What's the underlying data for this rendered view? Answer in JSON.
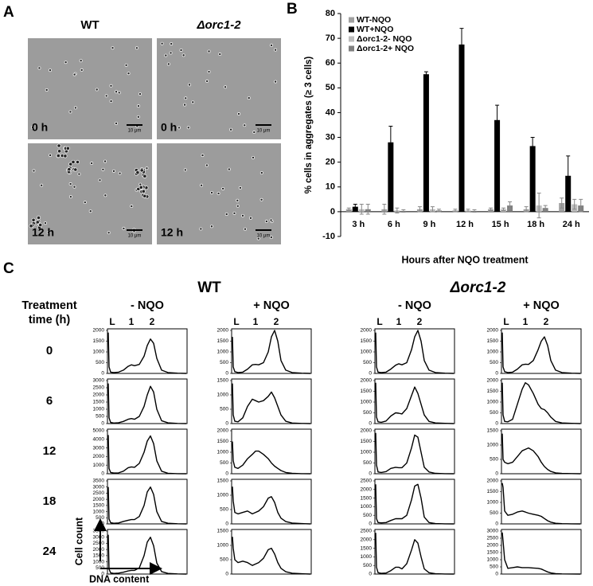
{
  "panel_labels": [
    "A",
    "B",
    "C"
  ],
  "panel_a": {
    "columns": [
      "WT",
      "Δorc1-2"
    ],
    "rows": [
      "0 h",
      "12 h"
    ],
    "scale_bar": "10 μm"
  },
  "chart_data": [
    {
      "type": "bar",
      "y_label": "% cells in aggregates (≥ 3 cells)",
      "x_label": "Hours after NQO treatment",
      "categories": [
        "3 h",
        "6 h",
        "9 h",
        "12 h",
        "15 h",
        "18 h",
        "24 h"
      ],
      "ylim": [
        -10,
        80
      ],
      "yticks": [
        -10,
        0,
        10,
        20,
        30,
        40,
        50,
        60,
        70,
        80
      ],
      "legend": "upper left",
      "series": [
        {
          "name": "WT-NQO",
          "color": "#a0a0a0",
          "values": [
            1,
            1,
            1,
            0.5,
            1,
            1,
            3.5
          ],
          "errors": [
            0.5,
            2,
            1,
            0.5,
            0.5,
            1,
            2
          ]
        },
        {
          "name": "WT+NQO",
          "color": "#000000",
          "values": [
            2,
            28,
            55.5,
            67.5,
            37,
            26.5,
            14.5
          ],
          "errors": [
            1,
            6.5,
            1,
            6.5,
            6,
            3.5,
            8
          ]
        },
        {
          "name": "Δorc1-2- NQO",
          "color": "#bdbdbd",
          "values": [
            1,
            0.5,
            1,
            0.5,
            1,
            2.5,
            3
          ],
          "errors": [
            2,
            1,
            1,
            0.5,
            0.5,
            5,
            2
          ]
        },
        {
          "name": "Δorc1-2+ NQO",
          "color": "#7f7f7f",
          "values": [
            1,
            0.3,
            0.5,
            0.3,
            2.5,
            1.5,
            2.5
          ],
          "errors": [
            2,
            0.5,
            0.5,
            0.5,
            1.5,
            1,
            2.5
          ]
        }
      ]
    },
    {
      "type": "line",
      "x": [
        1,
        2,
        4,
        8,
        14,
        20,
        26,
        30,
        34,
        40,
        46,
        50,
        54,
        58,
        62,
        68,
        76,
        88,
        99
      ],
      "xlim": [
        0,
        100
      ],
      "ylim": [
        0,
        2000
      ],
      "yticks": [
        0,
        500,
        1000,
        1500,
        2000
      ],
      "values": [
        1900,
        300,
        60,
        40,
        60,
        150,
        330,
        400,
        360,
        420,
        800,
        1300,
        1600,
        1400,
        700,
        150,
        40,
        10,
        0
      ]
    },
    {
      "type": "line",
      "x": [
        1,
        2,
        4,
        8,
        14,
        20,
        26,
        30,
        34,
        40,
        46,
        50,
        54,
        58,
        62,
        68,
        76,
        88,
        99
      ],
      "xlim": [
        0,
        100
      ],
      "ylim": [
        0,
        2000
      ],
      "yticks": [
        0,
        500,
        1000,
        1500,
        2000
      ],
      "values": [
        1700,
        300,
        80,
        40,
        60,
        200,
        400,
        420,
        400,
        500,
        1000,
        1700,
        2000,
        1500,
        600,
        150,
        40,
        10,
        0
      ]
    },
    {
      "type": "line",
      "x": [
        1,
        2,
        4,
        8,
        14,
        20,
        26,
        30,
        34,
        40,
        46,
        50,
        54,
        58,
        62,
        68,
        76,
        88,
        99
      ],
      "xlim": [
        0,
        100
      ],
      "ylim": [
        0,
        2000
      ],
      "yticks": [
        0,
        500,
        1000,
        1500,
        2000
      ],
      "values": [
        1900,
        300,
        60,
        40,
        60,
        200,
        380,
        450,
        400,
        500,
        1100,
        1700,
        2000,
        1500,
        600,
        150,
        40,
        10,
        0
      ]
    },
    {
      "type": "line",
      "x": [
        1,
        2,
        4,
        8,
        14,
        20,
        26,
        30,
        34,
        40,
        46,
        50,
        54,
        58,
        62,
        68,
        76,
        88,
        99
      ],
      "xlim": [
        0,
        100
      ],
      "ylim": [
        0,
        2000
      ],
      "yticks": [
        0,
        500,
        1000,
        1500,
        2000
      ],
      "values": [
        1900,
        300,
        80,
        40,
        60,
        200,
        400,
        430,
        420,
        600,
        1100,
        1500,
        1700,
        1300,
        600,
        150,
        40,
        10,
        0
      ]
    },
    {
      "type": "line",
      "x": [
        1,
        2,
        4,
        8,
        14,
        20,
        26,
        30,
        34,
        40,
        46,
        50,
        54,
        58,
        62,
        68,
        76,
        88,
        99
      ],
      "xlim": [
        0,
        100
      ],
      "ylim": [
        0,
        3000
      ],
      "yticks": [
        0,
        500,
        1000,
        1500,
        2000,
        2500,
        3000
      ],
      "values": [
        2800,
        400,
        80,
        40,
        60,
        150,
        300,
        350,
        300,
        500,
        1200,
        2000,
        2600,
        2200,
        1000,
        200,
        50,
        10,
        0
      ]
    },
    {
      "type": "line",
      "x": [
        1,
        2,
        4,
        8,
        14,
        20,
        26,
        30,
        34,
        40,
        46,
        50,
        54,
        58,
        62,
        68,
        76,
        88,
        99
      ],
      "xlim": [
        0,
        100
      ],
      "ylim": [
        0,
        1500
      ],
      "yticks": [
        0,
        500,
        1000,
        1500
      ],
      "values": [
        1400,
        300,
        80,
        60,
        200,
        600,
        850,
        800,
        750,
        800,
        950,
        1100,
        900,
        600,
        300,
        80,
        20,
        5,
        0
      ]
    },
    {
      "type": "line",
      "x": [
        1,
        2,
        4,
        8,
        14,
        20,
        26,
        30,
        34,
        40,
        46,
        50,
        54,
        58,
        62,
        68,
        76,
        88,
        99
      ],
      "xlim": [
        0,
        100
      ],
      "ylim": [
        0,
        2000
      ],
      "yticks": [
        0,
        500,
        1000,
        1500,
        2000
      ],
      "values": [
        1900,
        300,
        80,
        60,
        120,
        350,
        500,
        480,
        450,
        700,
        1300,
        1700,
        1400,
        900,
        400,
        100,
        30,
        10,
        0
      ]
    },
    {
      "type": "line",
      "x": [
        1,
        2,
        4,
        8,
        14,
        20,
        26,
        30,
        34,
        40,
        46,
        50,
        54,
        58,
        62,
        68,
        76,
        88,
        99
      ],
      "xlim": [
        0,
        100
      ],
      "ylim": [
        0,
        2000
      ],
      "yticks": [
        0,
        500,
        1000,
        1500,
        2000
      ],
      "values": [
        1900,
        400,
        100,
        80,
        200,
        900,
        1600,
        1900,
        1800,
        1400,
        900,
        700,
        650,
        500,
        300,
        100,
        30,
        10,
        0
      ]
    },
    {
      "type": "line",
      "x": [
        1,
        2,
        4,
        8,
        14,
        20,
        26,
        30,
        34,
        40,
        46,
        50,
        54,
        58,
        62,
        68,
        76,
        88,
        99
      ],
      "xlim": [
        0,
        100
      ],
      "ylim": [
        0,
        5000
      ],
      "yticks": [
        0,
        1000,
        2000,
        3000,
        4000,
        5000
      ],
      "values": [
        4500,
        600,
        150,
        80,
        100,
        300,
        700,
        800,
        750,
        1200,
        2500,
        3800,
        4400,
        3500,
        1500,
        300,
        60,
        10,
        0
      ]
    },
    {
      "type": "line",
      "x": [
        1,
        2,
        4,
        8,
        14,
        20,
        26,
        30,
        34,
        40,
        46,
        50,
        54,
        58,
        62,
        68,
        76,
        88,
        99
      ],
      "xlim": [
        0,
        100
      ],
      "ylim": [
        0,
        2000
      ],
      "yticks": [
        0,
        500,
        1000,
        1500,
        2000
      ],
      "values": [
        1500,
        600,
        300,
        250,
        400,
        700,
        900,
        1050,
        1050,
        900,
        700,
        500,
        350,
        250,
        150,
        60,
        20,
        5,
        0
      ]
    },
    {
      "type": "line",
      "x": [
        1,
        2,
        4,
        8,
        14,
        20,
        26,
        30,
        34,
        40,
        46,
        50,
        54,
        58,
        62,
        68,
        76,
        88,
        99
      ],
      "xlim": [
        0,
        100
      ],
      "ylim": [
        0,
        2000
      ],
      "yticks": [
        0,
        500,
        1000,
        1500,
        2000
      ],
      "values": [
        1900,
        400,
        80,
        60,
        100,
        250,
        300,
        280,
        280,
        500,
        1200,
        1800,
        1700,
        1000,
        300,
        80,
        20,
        5,
        0
      ]
    },
    {
      "type": "line",
      "x": [
        1,
        2,
        4,
        8,
        14,
        20,
        26,
        30,
        34,
        40,
        46,
        50,
        54,
        58,
        62,
        68,
        76,
        88,
        99
      ],
      "xlim": [
        0,
        100
      ],
      "ylim": [
        0,
        1500
      ],
      "yticks": [
        0,
        500,
        1000,
        1500
      ],
      "values": [
        1400,
        500,
        400,
        350,
        400,
        600,
        800,
        850,
        900,
        800,
        600,
        400,
        250,
        150,
        80,
        30,
        10,
        5,
        0
      ]
    },
    {
      "type": "line",
      "x": [
        1,
        2,
        4,
        8,
        14,
        20,
        26,
        30,
        34,
        40,
        46,
        50,
        54,
        58,
        62,
        68,
        76,
        88,
        99
      ],
      "xlim": [
        0,
        100
      ],
      "ylim": [
        0,
        3500
      ],
      "yticks": [
        0,
        500,
        1000,
        1500,
        2000,
        2500,
        3000,
        3500
      ],
      "values": [
        3000,
        400,
        100,
        50,
        80,
        200,
        300,
        350,
        350,
        600,
        1500,
        2600,
        3000,
        2400,
        1000,
        200,
        50,
        10,
        0
      ]
    },
    {
      "type": "line",
      "x": [
        1,
        2,
        4,
        8,
        14,
        20,
        26,
        30,
        34,
        40,
        46,
        50,
        54,
        58,
        62,
        68,
        76,
        88,
        99
      ],
      "xlim": [
        0,
        100
      ],
      "ylim": [
        0,
        1500
      ],
      "yticks": [
        0,
        500,
        1000,
        1500
      ],
      "values": [
        1300,
        800,
        400,
        350,
        400,
        450,
        350,
        400,
        450,
        600,
        900,
        950,
        750,
        400,
        200,
        80,
        30,
        10,
        0
      ]
    },
    {
      "type": "line",
      "x": [
        1,
        2,
        4,
        8,
        14,
        20,
        26,
        30,
        34,
        40,
        46,
        50,
        54,
        58,
        62,
        68,
        76,
        88,
        99
      ],
      "xlim": [
        0,
        100
      ],
      "ylim": [
        0,
        2500
      ],
      "yticks": [
        0,
        500,
        1000,
        1500,
        2000,
        2500
      ],
      "values": [
        2300,
        300,
        80,
        60,
        80,
        200,
        300,
        300,
        300,
        500,
        1400,
        2200,
        2300,
        1500,
        400,
        80,
        20,
        5,
        0
      ]
    },
    {
      "type": "line",
      "x": [
        1,
        2,
        4,
        8,
        14,
        20,
        26,
        30,
        34,
        40,
        46,
        50,
        54,
        58,
        62,
        68,
        76,
        88,
        99
      ],
      "xlim": [
        0,
        100
      ],
      "ylim": [
        0,
        2000
      ],
      "yticks": [
        0,
        500,
        1000,
        1500,
        2000
      ],
      "values": [
        1900,
        1700,
        600,
        400,
        450,
        550,
        600,
        550,
        500,
        450,
        400,
        350,
        250,
        150,
        80,
        30,
        10,
        5,
        0
      ]
    },
    {
      "type": "line",
      "x": [
        1,
        2,
        4,
        8,
        14,
        20,
        26,
        30,
        34,
        40,
        46,
        50,
        54,
        58,
        62,
        68,
        76,
        88,
        99
      ],
      "xlim": [
        0,
        100
      ],
      "ylim": [
        0,
        3500
      ],
      "yticks": [
        0,
        500,
        1000,
        1500,
        2000,
        2500,
        3000,
        3500
      ],
      "values": [
        3200,
        400,
        100,
        50,
        80,
        150,
        250,
        300,
        300,
        500,
        1500,
        2600,
        3000,
        2300,
        900,
        200,
        50,
        10,
        0
      ]
    },
    {
      "type": "line",
      "x": [
        1,
        2,
        4,
        8,
        14,
        20,
        26,
        30,
        34,
        40,
        46,
        50,
        54,
        58,
        62,
        68,
        76,
        88,
        99
      ],
      "xlim": [
        0,
        100
      ],
      "ylim": [
        0,
        1500
      ],
      "yticks": [
        0,
        500,
        1000,
        1500
      ],
      "values": [
        1300,
        900,
        500,
        400,
        450,
        400,
        300,
        350,
        400,
        550,
        850,
        900,
        700,
        400,
        200,
        80,
        30,
        10,
        0
      ]
    },
    {
      "type": "line",
      "x": [
        1,
        2,
        4,
        8,
        14,
        20,
        26,
        30,
        34,
        40,
        46,
        50,
        54,
        58,
        62,
        68,
        76,
        88,
        99
      ],
      "xlim": [
        0,
        100
      ],
      "ylim": [
        0,
        2500
      ],
      "yticks": [
        0,
        500,
        1000,
        1500,
        2000,
        2500
      ],
      "values": [
        2400,
        400,
        80,
        40,
        60,
        200,
        400,
        400,
        300,
        600,
        1400,
        2000,
        1800,
        1000,
        300,
        80,
        20,
        5,
        0
      ]
    },
    {
      "type": "line",
      "x": [
        1,
        2,
        4,
        8,
        14,
        20,
        26,
        30,
        34,
        40,
        46,
        50,
        54,
        58,
        62,
        68,
        76,
        88,
        99
      ],
      "xlim": [
        0,
        100
      ],
      "ylim": [
        0,
        3000
      ],
      "yticks": [
        0,
        500,
        1000,
        1500,
        2000,
        2500,
        3000
      ],
      "values": [
        2900,
        2300,
        1000,
        400,
        450,
        500,
        450,
        450,
        450,
        420,
        400,
        350,
        250,
        150,
        80,
        30,
        10,
        5,
        0
      ]
    }
  ],
  "panel_c": {
    "strains": [
      "WT",
      "Δorc1-2"
    ],
    "treatments": [
      "- NQO",
      "+ NQO"
    ],
    "time_label": [
      "Treatment",
      "time (h)"
    ],
    "times": [
      "0",
      "6",
      "12",
      "18",
      "24"
    ],
    "peak_labels": [
      "L",
      "1",
      "2"
    ],
    "y_label": "Cell count",
    "x_label": "DNA content"
  }
}
